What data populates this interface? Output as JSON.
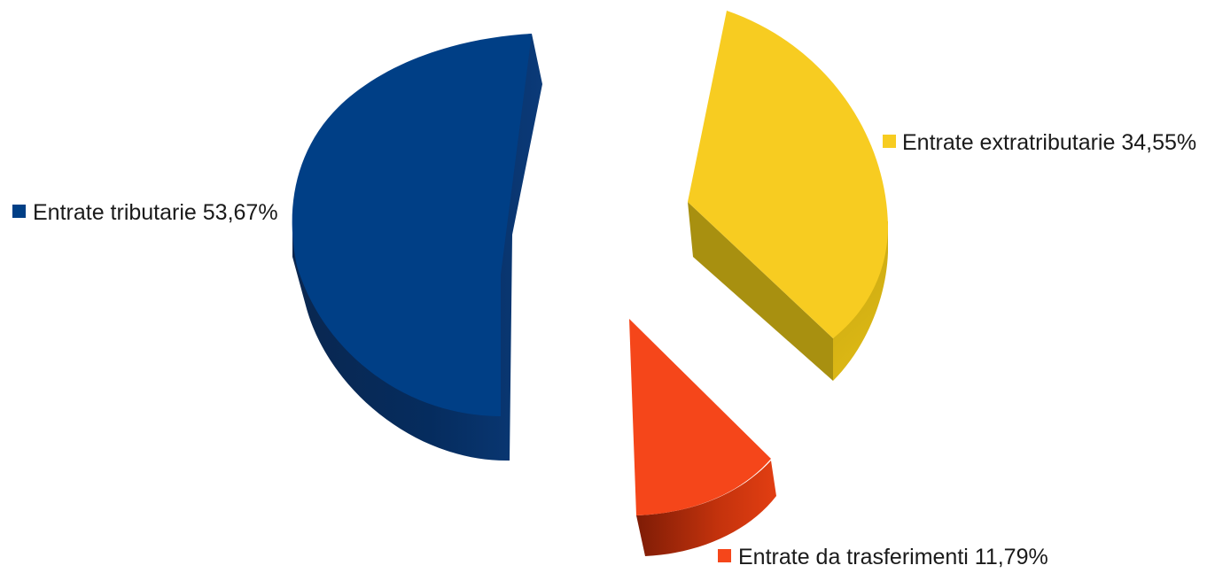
{
  "chart_data": {
    "type": "pie",
    "style": "3d-exploded",
    "slices": [
      {
        "label": "Entrate tributarie 53,67%",
        "value": 53.67,
        "color": "#003f86",
        "side": "#052c5e"
      },
      {
        "label": "Entrate extratributarie 34,55%",
        "value": 34.55,
        "color": "#f7cc21",
        "side": "#bfa010"
      },
      {
        "label": "Entrate da trasferimenti 11,79%",
        "value": 11.79,
        "color": "#f5461a",
        "side": "#b72e0c"
      }
    ]
  }
}
